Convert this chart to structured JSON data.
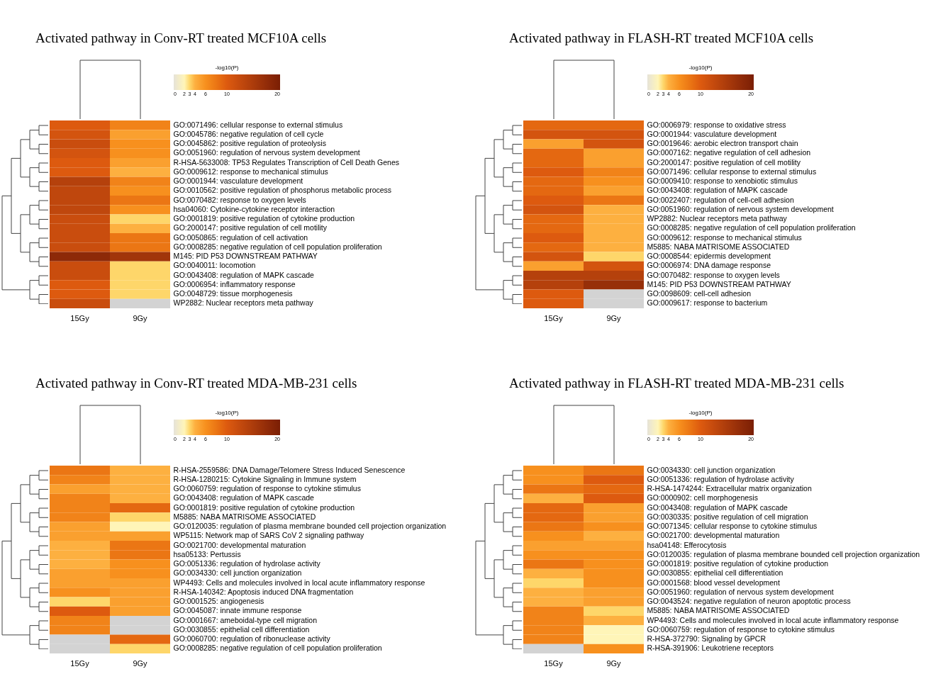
{
  "chart_data": [
    {
      "type": "heatmap",
      "title": "Activated pathway in Conv-RT treated MCF10A cells",
      "categories": [
        "15Gy",
        "9Gy"
      ],
      "y_categories": [
        "GO:0071496: cellular response to external stimulus",
        "GO:0045786: negative regulation of cell cycle",
        "GO:0045862: positive regulation of proteolysis",
        "GO:0051960: regulation of nervous system development",
        "R-HSA-5633008: TP53 Regulates Transcription of Cell Death Genes",
        "GO:0009612: response to mechanical stimulus",
        "GO:0001944: vasculature development",
        "GO:0010562: positive regulation of phosphorus metabolic process",
        "GO:0070482: response to oxygen levels",
        "hsa04060: Cytokine-cytokine receptor interaction",
        "GO:0001819: positive regulation of cytokine production",
        "GO:2000147: positive regulation of cell motility",
        "GO:0050865: regulation of cell activation",
        "GO:0008285: negative regulation of cell population proliferation",
        "M145: PID P53 DOWNSTREAM PATHWAY",
        "GO:0040011: locomotion",
        "GO:0043408: regulation of MAPK cascade",
        "GO:0006954: inflammatory response",
        "GO:0048729: tissue morphogenesis",
        "WP2882: Nuclear receptors meta pathway"
      ],
      "cells": [
        [
          10,
          7
        ],
        [
          11,
          5
        ],
        [
          12,
          6
        ],
        [
          11,
          6
        ],
        [
          10,
          5
        ],
        [
          10,
          4
        ],
        [
          14,
          7
        ],
        [
          13,
          6
        ],
        [
          13,
          8
        ],
        [
          13,
          6
        ],
        [
          12,
          3
        ],
        [
          12,
          4
        ],
        [
          12,
          8
        ],
        [
          12,
          8
        ],
        [
          18,
          16
        ],
        [
          12,
          3
        ],
        [
          12,
          3
        ],
        [
          10,
          3
        ],
        [
          10,
          3
        ],
        [
          12,
          null
        ]
      ],
      "clabel": "-log10(P)",
      "clim": [
        0,
        20
      ],
      "cticks": [
        0,
        2,
        3,
        4,
        6,
        10,
        20
      ]
    },
    {
      "type": "heatmap",
      "title": "Activated pathway in FLASH-RT treated MCF10A cells",
      "categories": [
        "15Gy",
        "9Gy"
      ],
      "y_categories": [
        "GO:0006979: response to oxidative stress",
        "GO:0001944: vasculature development",
        "GO:0019646: aerobic electron transport chain",
        "GO:0007162: negative regulation of cell adhesion",
        "GO:2000147: positive regulation of cell motility",
        "GO:0071496: cellular response to external stimulus",
        "GO:0009410: response to xenobiotic stimulus",
        "GO:0043408: regulation of MAPK cascade",
        "GO:0022407: regulation of cell-cell adhesion",
        "GO:0051960: regulation of nervous system development",
        "WP2882: Nuclear receptors meta pathway",
        "GO:0008285: negative regulation of cell population proliferation",
        "GO:0009612: response to mechanical stimulus",
        "M5885: NABA MATRISOME ASSOCIATED",
        "GO:0008544: epidermis development",
        "GO:0006974: DNA damage response",
        "GO:0070482: response to oxygen levels",
        "M145: PID P53 DOWNSTREAM PATHWAY",
        "GO:0098609: cell-cell adhesion",
        "GO:0009617: response to bacterium"
      ],
      "cells": [
        [
          9,
          9
        ],
        [
          11,
          11
        ],
        [
          5,
          11
        ],
        [
          9,
          5
        ],
        [
          9,
          5
        ],
        [
          10,
          7
        ],
        [
          9,
          6
        ],
        [
          9,
          5
        ],
        [
          10,
          8
        ],
        [
          11,
          4
        ],
        [
          9,
          4
        ],
        [
          9,
          4
        ],
        [
          10,
          4
        ],
        [
          9,
          4
        ],
        [
          11,
          3
        ],
        [
          5,
          11
        ],
        [
          14,
          14
        ],
        [
          14,
          17
        ],
        [
          10,
          null
        ],
        [
          10,
          null
        ]
      ],
      "clabel": "-log10(P)",
      "clim": [
        0,
        20
      ],
      "cticks": [
        0,
        2,
        3,
        4,
        6,
        10,
        20
      ]
    },
    {
      "type": "heatmap",
      "title": "Activated pathway in Conv-RT treated MDA-MB-231 cells",
      "categories": [
        "15Gy",
        "9Gy"
      ],
      "y_categories": [
        "R-HSA-2559586: DNA Damage/Telomere Stress Induced Senescence",
        "R-HSA-1280215: Cytokine Signaling in Immune system",
        "GO:0060759: regulation of response to cytokine stimulus",
        "GO:0043408: regulation of MAPK cascade",
        "GO:0001819: positive regulation of cytokine production",
        "M5885: NABA MATRISOME ASSOCIATED",
        "GO:0120035: regulation of plasma membrane bounded cell projection organization",
        "WP5115: Network map of SARS CoV 2 signaling pathway",
        "GO:0021700: developmental maturation",
        "hsa05133: Pertussis",
        "GO:0051336: regulation of hydrolase activity",
        "GO:0034330: cell junction organization",
        "WP4493: Cells and molecules involved in local acute inflammatory response",
        "R-HSA-140342: Apoptosis induced DNA fragmentation",
        "GO:0001525: angiogenesis",
        "GO:0045087: innate immune response",
        "GO:0001667: ameboidal-type cell migration",
        "GO:0030855: epithelial cell differentiation",
        "GO:0060700: regulation of ribonuclease activity",
        "GO:0008285: negative regulation of cell population proliferation"
      ],
      "cells": [
        [
          8,
          4
        ],
        [
          7,
          4
        ],
        [
          5,
          4
        ],
        [
          7,
          4
        ],
        [
          7,
          9
        ],
        [
          7,
          3
        ],
        [
          5,
          2
        ],
        [
          5,
          5
        ],
        [
          4,
          8
        ],
        [
          4,
          8
        ],
        [
          4,
          6
        ],
        [
          5,
          6
        ],
        [
          5,
          5
        ],
        [
          6,
          5
        ],
        [
          3,
          5
        ],
        [
          10,
          5
        ],
        [
          7,
          null
        ],
        [
          7,
          null
        ],
        [
          null,
          9
        ],
        [
          null,
          3
        ]
      ],
      "clabel": "-log10(P)",
      "clim": [
        0,
        20
      ],
      "cticks": [
        0,
        2,
        3,
        4,
        6,
        10,
        20
      ]
    },
    {
      "type": "heatmap",
      "title": "Activated pathway in FLASH-RT treated MDA-MB-231 cells",
      "categories": [
        "15Gy",
        "9Gy"
      ],
      "y_categories": [
        "GO:0034330: cell junction organization",
        "GO:0051336: regulation of hydrolase activity",
        "R-HSA-1474244: Extracellular matrix organization",
        "GO:0000902: cell morphogenesis",
        "GO:0043408: regulation of MAPK cascade",
        "GO:0030335: positive regulation of cell migration",
        "GO:0071345: cellular response to cytokine stimulus",
        "GO:0021700: developmental maturation",
        "hsa04148: Efferocytosis",
        "GO:0120035: regulation of plasma membrane bounded cell projection organization",
        "GO:0001819: positive regulation of cytokine production",
        "GO:0030855: epithelial cell differentiation",
        "GO:0001568: blood vessel development",
        "GO:0051960: regulation of nervous system development",
        "GO:0043524: negative regulation of neuron apoptotic process",
        "M5885: NABA MATRISOME ASSOCIATED",
        "WP4493: Cells and molecules involved in local acute inflammatory response",
        "GO:0060759: regulation of response to cytokine stimulus",
        "R-HSA-372790: Signaling by GPCR",
        "R-HSA-391906: Leukotriene receptors"
      ],
      "cells": [
        [
          6,
          8
        ],
        [
          6,
          10
        ],
        [
          8,
          9
        ],
        [
          4,
          10
        ],
        [
          9,
          5
        ],
        [
          9,
          5
        ],
        [
          8,
          6
        ],
        [
          6,
          4
        ],
        [
          5,
          5
        ],
        [
          6,
          6
        ],
        [
          8,
          6
        ],
        [
          4,
          6
        ],
        [
          3,
          6
        ],
        [
          4,
          5
        ],
        [
          4,
          5
        ],
        [
          7,
          3
        ],
        [
          7,
          4
        ],
        [
          7,
          2
        ],
        [
          7,
          2
        ],
        [
          null,
          6
        ]
      ],
      "clabel": "-log10(P)",
      "clim": [
        0,
        20
      ],
      "cticks": [
        0,
        2,
        3,
        4,
        6,
        10,
        20
      ]
    }
  ]
}
